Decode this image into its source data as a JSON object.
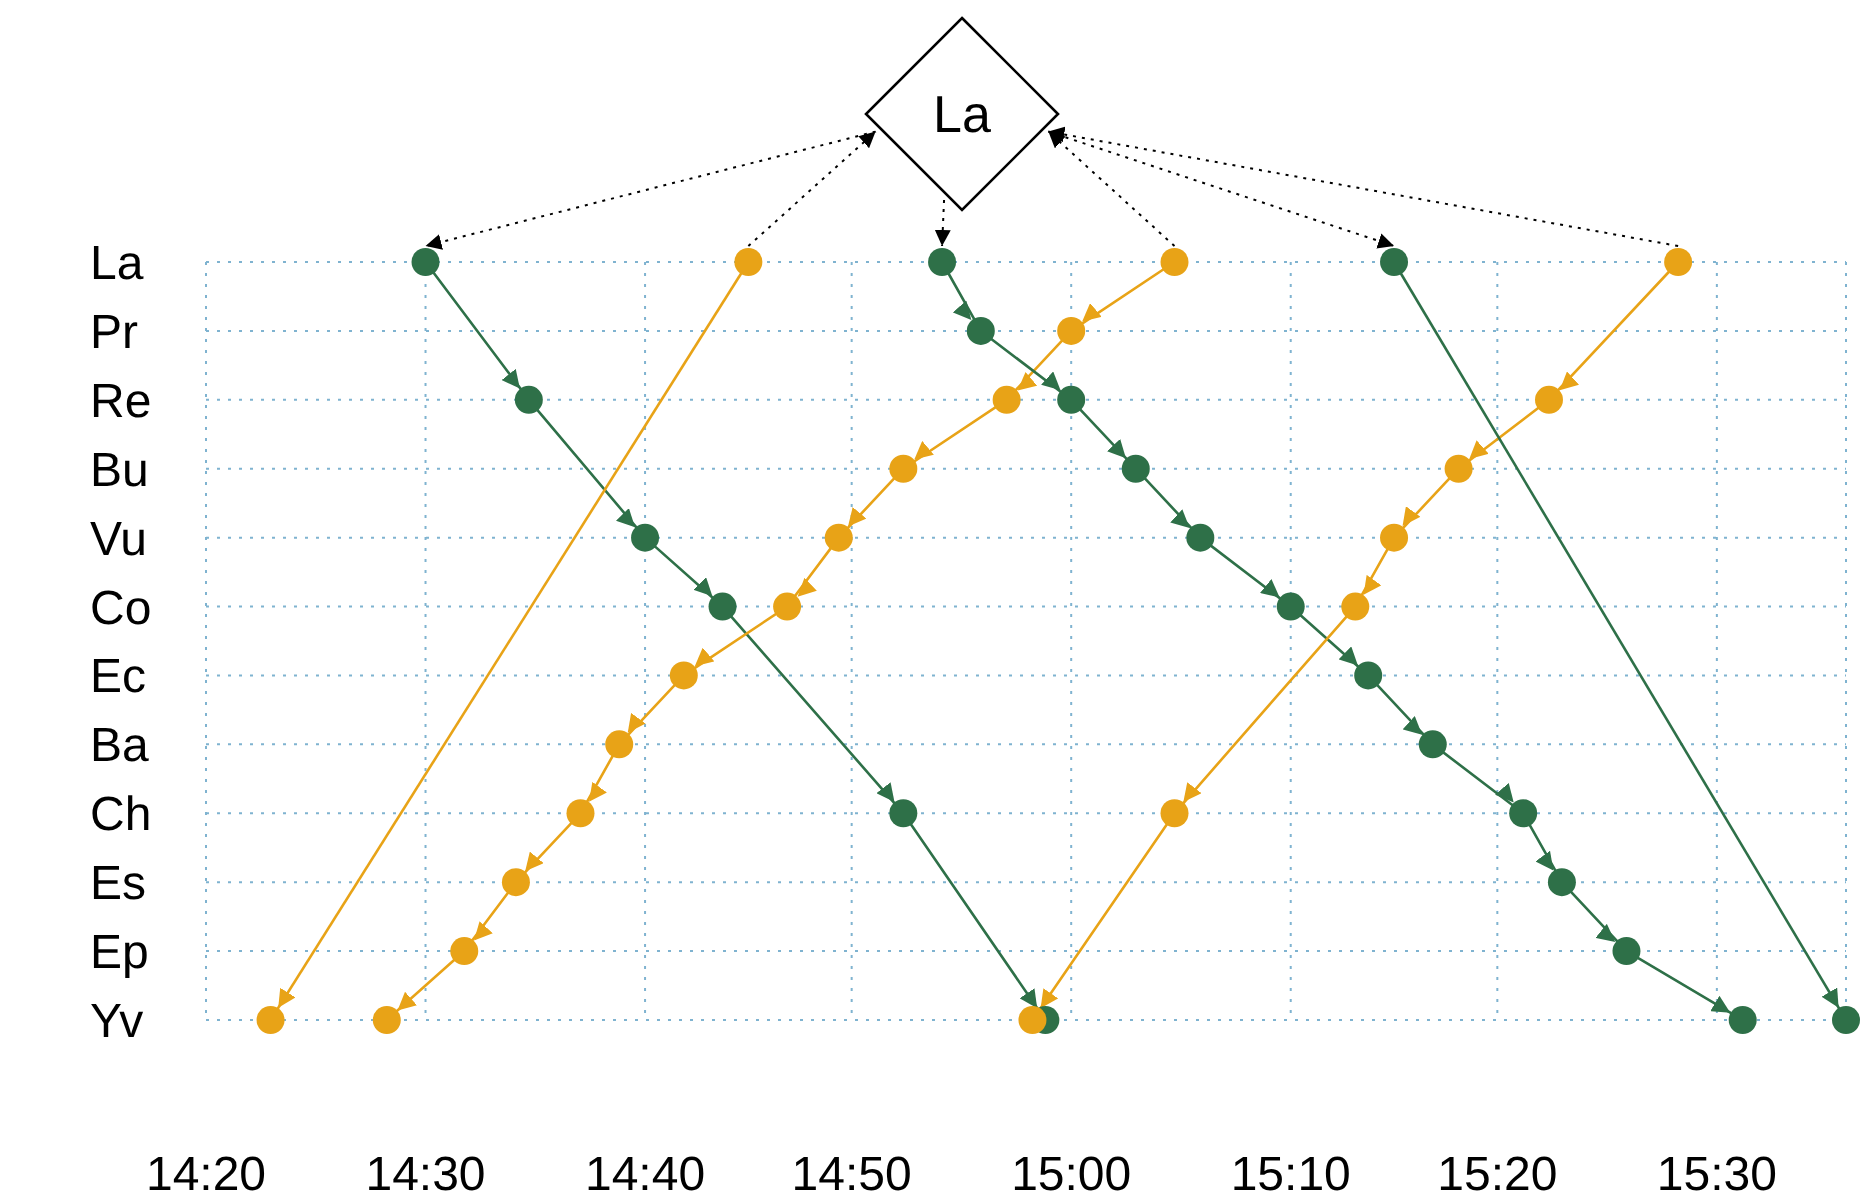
{
  "chart_data": {
    "type": "line",
    "orientation": "horizontal",
    "categories": [
      "La",
      "Pr",
      "Re",
      "Bu",
      "Vu",
      "Co",
      "Ec",
      "Ba",
      "Ch",
      "Es",
      "Ep",
      "Yv"
    ],
    "series": [
      {
        "color": "#2e7048",
        "values": [
          14.5,
          null,
          14.58,
          null,
          14.67,
          14.73,
          null,
          null,
          14.87,
          null,
          null,
          14.98
        ]
      },
      {
        "color": "#e8a317",
        "values": [
          14.75,
          null,
          null,
          null,
          null,
          null,
          null,
          null,
          null,
          null,
          null,
          14.38
        ]
      },
      {
        "color": "#e8a317",
        "values": [
          15.08,
          15.0,
          14.95,
          14.87,
          14.82,
          14.78,
          14.7,
          14.65,
          14.62,
          14.57,
          14.53,
          14.47
        ]
      },
      {
        "color": "#2e7048",
        "values": [
          14.9,
          14.93,
          15.0,
          15.05,
          15.1,
          15.17,
          15.23,
          15.28,
          15.35,
          15.38,
          15.43,
          15.52
        ]
      },
      {
        "color": "#e8a317",
        "values": [
          15.47,
          null,
          15.37,
          15.3,
          15.25,
          15.22,
          null,
          null,
          15.08,
          null,
          null,
          14.97
        ]
      },
      {
        "color": "#2e7048",
        "values": [
          15.25,
          null,
          null,
          null,
          null,
          null,
          null,
          null,
          null,
          null,
          null,
          15.6
        ]
      }
    ],
    "xlim": [
      14.33,
      15.6
    ],
    "xticks": [
      {
        "value": 14.33,
        "label": "14:20"
      },
      {
        "value": 14.5,
        "label": "14:30"
      },
      {
        "value": 14.67,
        "label": "14:40"
      },
      {
        "value": 14.83,
        "label": "14:50"
      },
      {
        "value": 15.0,
        "label": "15:00"
      },
      {
        "value": 15.17,
        "label": "15:10"
      },
      {
        "value": 15.33,
        "label": "15:20"
      },
      {
        "value": 15.5,
        "label": "15:30"
      }
    ],
    "grid": true,
    "marker": "circle",
    "line_style": "solid",
    "annotations": [
      "La"
    ]
  }
}
